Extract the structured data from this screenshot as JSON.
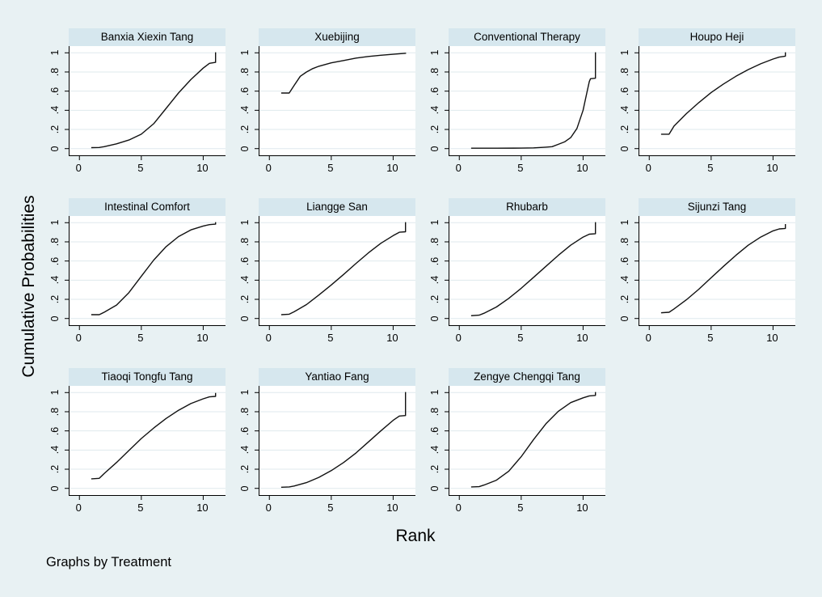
{
  "figure": {
    "y_axis_title": "Cumulative Probabilities",
    "x_axis_title": "Rank",
    "footnote": "Graphs by Treatment",
    "colors": {
      "background": "#e8f1f3",
      "panel_title_bg": "#d6e7ee",
      "plot_bg": "#ffffff",
      "gridline": "#dfe9ed",
      "axis": "#000000",
      "curve": "#111111",
      "text": "#000000"
    }
  },
  "chart_data": {
    "type": "line",
    "title": "Cumulative ranking probabilities by treatment (trellis of 11 panels)",
    "xlabel": "Rank",
    "ylabel": "Cumulative Probabilities",
    "xlim": [
      -0.8,
      11.8
    ],
    "ylim": [
      -0.07,
      1.07
    ],
    "x_ticks": [
      0,
      5,
      10
    ],
    "x_tick_labels": [
      "0",
      "5",
      "10"
    ],
    "y_ticks": [
      0,
      0.2,
      0.4,
      0.6,
      0.8,
      1
    ],
    "y_tick_labels": [
      "0",
      ".2",
      ".4",
      ".6",
      ".8",
      "1"
    ],
    "grid": "horizontal",
    "legend": "none",
    "panels": [
      {
        "title": "Banxia Xiexin Tang",
        "points": [
          [
            1,
            0.01
          ],
          [
            1.6,
            0.012
          ],
          [
            2,
            0.02
          ],
          [
            3,
            0.05
          ],
          [
            4,
            0.09
          ],
          [
            5,
            0.15
          ],
          [
            6,
            0.26
          ],
          [
            7,
            0.42
          ],
          [
            8,
            0.58
          ],
          [
            9,
            0.72
          ],
          [
            10,
            0.84
          ],
          [
            10.5,
            0.89
          ],
          [
            11,
            0.9
          ],
          [
            11,
            1.0
          ]
        ]
      },
      {
        "title": "Xuebijing",
        "points": [
          [
            1,
            0.58
          ],
          [
            1.6,
            0.58
          ],
          [
            2,
            0.66
          ],
          [
            2.5,
            0.755
          ],
          [
            3,
            0.8
          ],
          [
            3.5,
            0.835
          ],
          [
            4,
            0.86
          ],
          [
            5,
            0.895
          ],
          [
            6,
            0.92
          ],
          [
            7,
            0.945
          ],
          [
            8,
            0.962
          ],
          [
            9,
            0.975
          ],
          [
            10,
            0.985
          ],
          [
            11,
            0.995
          ]
        ]
      },
      {
        "title": "Conventional Therapy",
        "points": [
          [
            1,
            0.004
          ],
          [
            3,
            0.004
          ],
          [
            5,
            0.005
          ],
          [
            6,
            0.008
          ],
          [
            7,
            0.015
          ],
          [
            7.5,
            0.02
          ],
          [
            8,
            0.045
          ],
          [
            8.5,
            0.07
          ],
          [
            9,
            0.115
          ],
          [
            9.5,
            0.21
          ],
          [
            10,
            0.4
          ],
          [
            10.3,
            0.58
          ],
          [
            10.5,
            0.7
          ],
          [
            10.6,
            0.73
          ],
          [
            11,
            0.735
          ],
          [
            11,
            1.0
          ]
        ]
      },
      {
        "title": "Houpo Heji",
        "points": [
          [
            1,
            0.15
          ],
          [
            1.6,
            0.15
          ],
          [
            2,
            0.235
          ],
          [
            2.5,
            0.3
          ],
          [
            3,
            0.365
          ],
          [
            4,
            0.48
          ],
          [
            5,
            0.585
          ],
          [
            6,
            0.675
          ],
          [
            7,
            0.755
          ],
          [
            8,
            0.825
          ],
          [
            9,
            0.885
          ],
          [
            10,
            0.935
          ],
          [
            10.5,
            0.955
          ],
          [
            11,
            0.965
          ],
          [
            11,
            1.0
          ]
        ]
      },
      {
        "title": "Intestinal Comfort",
        "points": [
          [
            1,
            0.04
          ],
          [
            1.6,
            0.04
          ],
          [
            2,
            0.065
          ],
          [
            3,
            0.14
          ],
          [
            4,
            0.27
          ],
          [
            5,
            0.44
          ],
          [
            6,
            0.61
          ],
          [
            7,
            0.75
          ],
          [
            8,
            0.855
          ],
          [
            9,
            0.925
          ],
          [
            10,
            0.965
          ],
          [
            10.5,
            0.98
          ],
          [
            11,
            0.985
          ],
          [
            11,
            1.0
          ]
        ]
      },
      {
        "title": "Liangge San",
        "points": [
          [
            1,
            0.04
          ],
          [
            1.6,
            0.045
          ],
          [
            2,
            0.07
          ],
          [
            3,
            0.145
          ],
          [
            4,
            0.245
          ],
          [
            5,
            0.35
          ],
          [
            6,
            0.46
          ],
          [
            7,
            0.575
          ],
          [
            8,
            0.685
          ],
          [
            9,
            0.785
          ],
          [
            10,
            0.865
          ],
          [
            10.5,
            0.9
          ],
          [
            11,
            0.905
          ],
          [
            11,
            1.0
          ]
        ]
      },
      {
        "title": "Rhubarb",
        "points": [
          [
            1,
            0.03
          ],
          [
            1.6,
            0.035
          ],
          [
            2,
            0.055
          ],
          [
            3,
            0.12
          ],
          [
            4,
            0.21
          ],
          [
            5,
            0.315
          ],
          [
            6,
            0.43
          ],
          [
            7,
            0.545
          ],
          [
            8,
            0.66
          ],
          [
            9,
            0.765
          ],
          [
            10,
            0.85
          ],
          [
            10.5,
            0.88
          ],
          [
            11,
            0.885
          ],
          [
            11,
            1.0
          ]
        ]
      },
      {
        "title": "Sijunzi Tang",
        "points": [
          [
            1,
            0.06
          ],
          [
            1.6,
            0.065
          ],
          [
            2,
            0.1
          ],
          [
            3,
            0.195
          ],
          [
            4,
            0.305
          ],
          [
            5,
            0.425
          ],
          [
            6,
            0.545
          ],
          [
            7,
            0.66
          ],
          [
            8,
            0.765
          ],
          [
            9,
            0.85
          ],
          [
            10,
            0.915
          ],
          [
            10.5,
            0.935
          ],
          [
            11,
            0.94
          ],
          [
            11,
            0.98
          ]
        ]
      },
      {
        "title": "Tiaoqi Tongfu Tang",
        "points": [
          [
            1,
            0.1
          ],
          [
            1.6,
            0.105
          ],
          [
            2,
            0.155
          ],
          [
            3,
            0.27
          ],
          [
            4,
            0.395
          ],
          [
            5,
            0.52
          ],
          [
            6,
            0.63
          ],
          [
            7,
            0.73
          ],
          [
            8,
            0.815
          ],
          [
            9,
            0.885
          ],
          [
            10,
            0.935
          ],
          [
            10.5,
            0.955
          ],
          [
            11,
            0.96
          ],
          [
            11,
            0.99
          ]
        ]
      },
      {
        "title": "Yantiao Fang",
        "points": [
          [
            1,
            0.012
          ],
          [
            1.6,
            0.015
          ],
          [
            2,
            0.025
          ],
          [
            3,
            0.06
          ],
          [
            4,
            0.115
          ],
          [
            5,
            0.185
          ],
          [
            6,
            0.27
          ],
          [
            7,
            0.37
          ],
          [
            8,
            0.485
          ],
          [
            9,
            0.6
          ],
          [
            10,
            0.71
          ],
          [
            10.5,
            0.755
          ],
          [
            11,
            0.76
          ],
          [
            11,
            1.0
          ]
        ]
      },
      {
        "title": "Zengye Chengqi Tang",
        "points": [
          [
            1,
            0.015
          ],
          [
            1.6,
            0.018
          ],
          [
            2,
            0.035
          ],
          [
            3,
            0.085
          ],
          [
            4,
            0.18
          ],
          [
            5,
            0.33
          ],
          [
            6,
            0.51
          ],
          [
            7,
            0.675
          ],
          [
            8,
            0.805
          ],
          [
            9,
            0.895
          ],
          [
            10,
            0.945
          ],
          [
            10.5,
            0.965
          ],
          [
            11,
            0.97
          ],
          [
            11,
            1.0
          ]
        ]
      }
    ]
  }
}
